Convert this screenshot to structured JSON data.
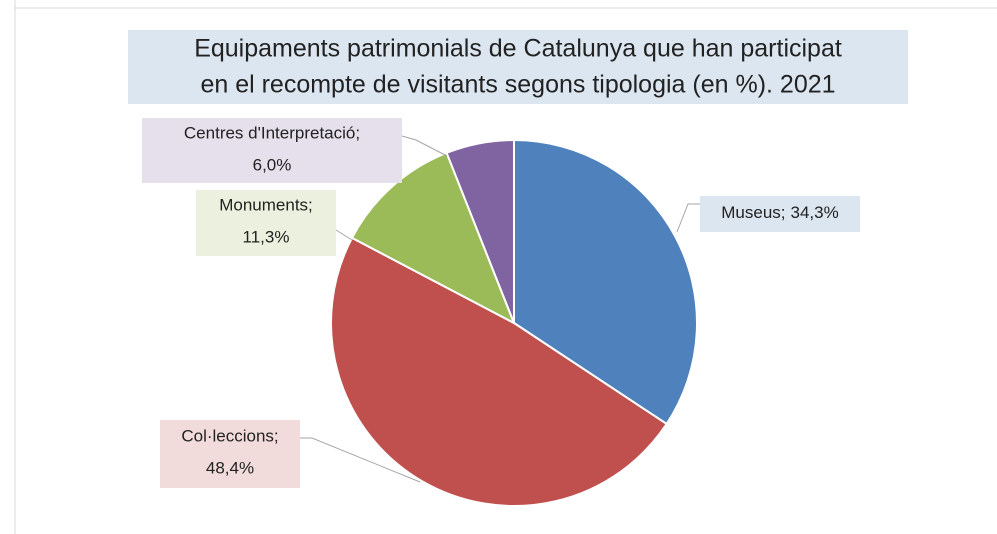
{
  "chart_data": {
    "type": "pie",
    "title": [
      "Equipaments patrimonials de Catalunya que han participat",
      "en el recompte de visitants segons tipologia (en %). 2021"
    ],
    "categories": [
      "Museus;",
      "Col·leccions;",
      "Monuments;",
      "Centres d'Interpretació;"
    ],
    "values": [
      34.3,
      48.4,
      11.3,
      6.0
    ],
    "value_labels": [
      "34,3%",
      "48,4%",
      "11,3%",
      "6,0%"
    ],
    "colors": [
      "#4f81bd",
      "#c0504d",
      "#9bbb59",
      "#8064a2"
    ]
  }
}
